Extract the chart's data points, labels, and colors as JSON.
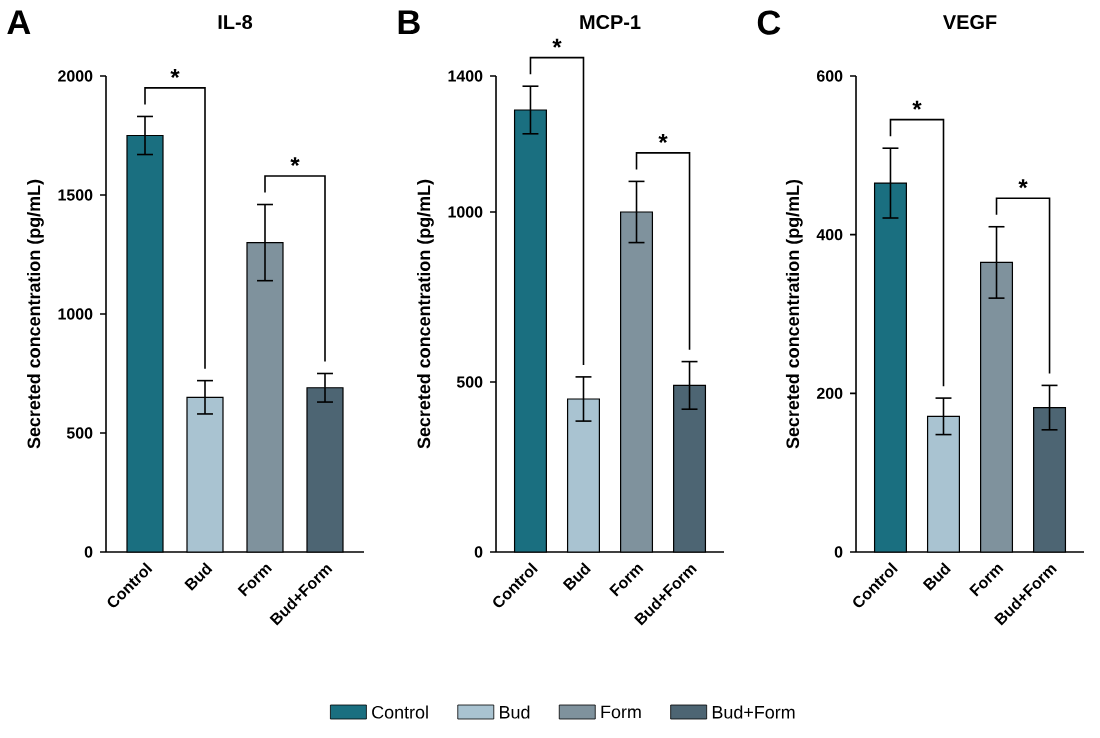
{
  "chart_data": [
    {
      "type": "bar",
      "title": "IL-8",
      "ylabel": "Secreted concentration (pg/mL)",
      "categories": [
        "Control",
        "Bud",
        "Form",
        "Bud+Form"
      ],
      "series": [
        {
          "color": "#1a6f80",
          "values": [
            1750,
            null,
            null,
            null
          ],
          "errors": [
            80,
            null,
            null,
            null
          ]
        },
        {
          "color": "#a9c3d1",
          "values": [
            null,
            650,
            null,
            null
          ],
          "errors": [
            null,
            70,
            null,
            null
          ]
        },
        {
          "color": "#7f929d",
          "values": [
            null,
            null,
            1300,
            null
          ],
          "errors": [
            null,
            null,
            160,
            null
          ]
        },
        {
          "color": "#4d6573",
          "values": [
            null,
            null,
            null,
            690
          ],
          "errors": [
            null,
            null,
            null,
            60
          ]
        }
      ],
      "ylim": [
        0,
        2000
      ],
      "yticks": [
        0,
        500,
        1000,
        1500,
        2000
      ],
      "annotations": [
        "A",
        "*",
        "*"
      ]
    },
    {
      "type": "bar",
      "title": "MCP-1",
      "ylabel": "Secreted concentration (pg/mL)",
      "categories": [
        "Control",
        "Bud",
        "Form",
        "Bud+Form"
      ],
      "series": [
        {
          "name": "Control",
          "color": "#1a6f80",
          "values": [
            1300,
            null,
            null,
            null
          ],
          "errors": [
            70,
            null,
            null,
            null
          ]
        },
        {
          "name": "Bud",
          "color": "#a9c3d1",
          "values": [
            null,
            450,
            null,
            null
          ],
          "errors": [
            null,
            65,
            null,
            null
          ]
        },
        {
          "name": "Form",
          "color": "#7f929d",
          "values": [
            null,
            null,
            1000,
            null
          ],
          "errors": [
            null,
            null,
            90,
            null
          ]
        },
        {
          "name": "Bud+Form",
          "color": "#4d6573",
          "values": [
            null,
            null,
            null,
            490
          ],
          "errors": [
            null,
            null,
            null,
            70
          ]
        }
      ],
      "ylim": [
        0,
        1400
      ],
      "yticks": [
        0,
        500,
        1000,
        1400
      ],
      "annotations": [
        "B",
        "*",
        "*"
      ],
      "legend": "bottom"
    },
    {
      "type": "bar",
      "title": "VEGF",
      "ylabel": "Secreted concentration (pg/mL)",
      "categories": [
        "Control",
        "Bud",
        "Form",
        "Bud+Form"
      ],
      "series": [
        {
          "color": "#1a6f80",
          "values": [
            465,
            null,
            null,
            null
          ],
          "errors": [
            44,
            null,
            null,
            null
          ]
        },
        {
          "color": "#a9c3d1",
          "values": [
            null,
            171,
            null,
            null
          ],
          "errors": [
            null,
            23,
            null,
            null
          ]
        },
        {
          "color": "#7f929d",
          "values": [
            null,
            null,
            365,
            null
          ],
          "errors": [
            null,
            null,
            45,
            null
          ]
        },
        {
          "color": "#4d6573",
          "values": [
            null,
            null,
            null,
            182
          ],
          "errors": [
            null,
            null,
            null,
            28
          ]
        }
      ],
      "ylim": [
        0,
        600
      ],
      "yticks": [
        0,
        200,
        400,
        600
      ],
      "annotations": [
        "C",
        "*",
        "*"
      ]
    }
  ]
}
